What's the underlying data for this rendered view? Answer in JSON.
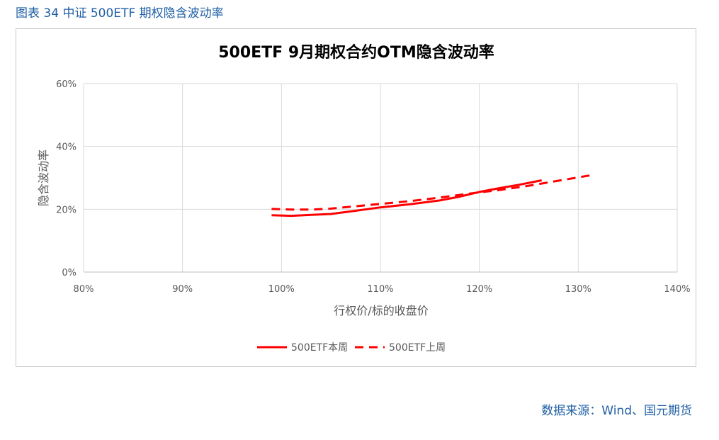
{
  "figure_title": "图表 34 中证 500ETF 期权隐含波动率",
  "source": "数据来源：Wind、国元期货",
  "colors": {
    "accent": "#1f5fa5",
    "series": "#ff0000",
    "grid": "#d9d9d9"
  },
  "chart_data": {
    "type": "line",
    "title": "500ETF 9月期权合约OTM隐含波动率",
    "xlabel": "行权价/标的收盘价",
    "ylabel": "隐含波动率",
    "xlim": [
      80,
      140
    ],
    "ylim": [
      0,
      60
    ],
    "xticks": [
      "80%",
      "90%",
      "100%",
      "110%",
      "120%",
      "130%",
      "140%"
    ],
    "yticks": [
      "0%",
      "20%",
      "40%",
      "60%"
    ],
    "xtick_values": [
      80,
      90,
      100,
      110,
      120,
      130,
      140
    ],
    "ytick_values": [
      0,
      20,
      40,
      60
    ],
    "grid": true,
    "legend_position": "bottom",
    "series": [
      {
        "name": "500ETF本周",
        "style": "solid",
        "x": [
          99.0,
          101.0,
          103.0,
          105.0,
          107.0,
          110.0,
          113.0,
          116.0,
          118.0,
          120.0,
          122.0,
          124.0,
          126.3
        ],
        "y": [
          18.1,
          17.9,
          18.2,
          18.5,
          19.3,
          20.6,
          21.6,
          22.8,
          24.0,
          25.5,
          26.7,
          27.8,
          29.2
        ]
      },
      {
        "name": "500ETF上周",
        "style": "dashed",
        "x": [
          99.0,
          101.0,
          103.0,
          105.0,
          107.0,
          110.0,
          113.0,
          116.0,
          119.0,
          122.0,
          125.0,
          128.0,
          131.6
        ],
        "y": [
          20.1,
          19.9,
          19.9,
          20.2,
          20.8,
          21.7,
          22.6,
          23.7,
          25.0,
          26.1,
          27.5,
          29.1,
          31.0
        ]
      }
    ]
  }
}
